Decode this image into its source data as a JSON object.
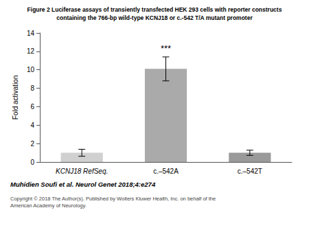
{
  "chart_data": {
    "type": "bar",
    "title": "Figure 2 Luciferase assays of transiently transfected HEK 293 cells with reporter constructs",
    "subtitle": "containing the 766-bp wild-type KCNJ18 or c.-542 T/A mutant promoter",
    "categories": [
      "KCNJ18 RefSeq.",
      "c.–542A",
      "c.–542T"
    ],
    "values": [
      1.0,
      10.1,
      1.0
    ],
    "errors": [
      0.38,
      1.3,
      0.28
    ],
    "colors": [
      "#d0d0d0",
      "#aaaaaa",
      "#9a9a9a"
    ],
    "ylabel": "Fold activation",
    "ylim": [
      0,
      14
    ],
    "yticks": [
      0,
      2,
      4,
      6,
      8,
      10,
      12,
      14
    ],
    "grid": false,
    "annotations": [
      {
        "text": "***",
        "category": "c.–542A"
      },
      {
        "text": "Muhidien Soufi et al. Neurol Genet 2018;4:e274"
      },
      {
        "text": "Copyright © 2018 The Author(s). Published by Wolters Kluwer Health, Inc. on behalf of the\nAmerican Academy of Neurology."
      }
    ]
  }
}
